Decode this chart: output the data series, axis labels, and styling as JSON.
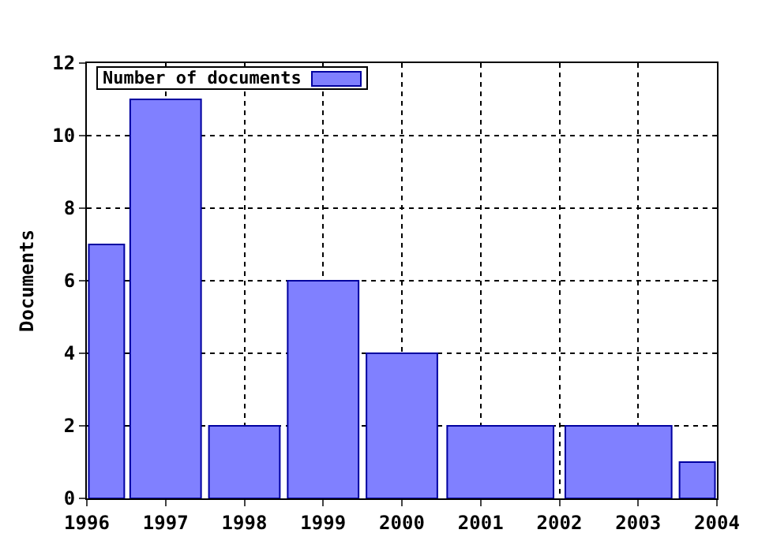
{
  "chart_data": {
    "type": "histogram",
    "ylabel": "Documents",
    "bins": [
      1996,
      1996.5,
      1997.5,
      1998.5,
      1999.5,
      2000.5,
      2002,
      2003.5,
      2004
    ],
    "series": [
      {
        "name": "Number of documents",
        "color": "#8080ff",
        "values": [
          7,
          11,
          2,
          6,
          4,
          2,
          2,
          1
        ]
      }
    ],
    "xlim": [
      1996,
      2004
    ],
    "xticks": [
      1996,
      1997,
      1998,
      1999,
      2000,
      2001,
      2002,
      2003,
      2004
    ],
    "ylim": [
      0,
      12
    ],
    "yticks": [
      0,
      2,
      4,
      6,
      8,
      10,
      12
    ],
    "grid": true,
    "legend": "top left"
  }
}
